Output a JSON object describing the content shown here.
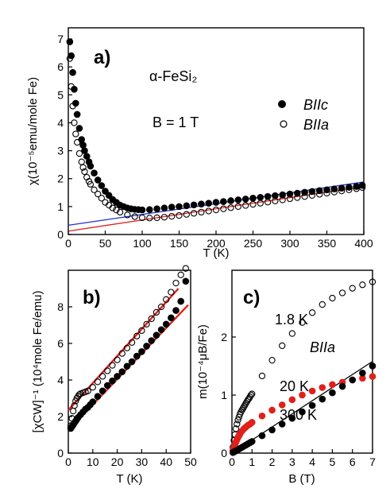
{
  "chart_data": [
    {
      "panel": "a)",
      "type": "scatter",
      "xlabel": "T (K)",
      "ylabel": "χ(10⁻⁵emu/mole Fe)",
      "xlim": [
        0,
        400
      ],
      "ylim": [
        0,
        7.4
      ],
      "xticks": [
        0,
        50,
        100,
        150,
        200,
        250,
        300,
        350,
        400
      ],
      "yticks": [
        0,
        1,
        2,
        3,
        4,
        5,
        6,
        7
      ],
      "annotations": {
        "compound": "α-FeSi₂",
        "field": "B = 1 T"
      },
      "series": [
        {
          "name": "BIIc",
          "marker": "filled-circle",
          "color": "#000000",
          "x": [
            2,
            4,
            6,
            8,
            10,
            12,
            15,
            18,
            20,
            22,
            25,
            28,
            30,
            35,
            40,
            45,
            50,
            55,
            60,
            65,
            70,
            75,
            80,
            85,
            90,
            95,
            100,
            110,
            120,
            130,
            140,
            150,
            160,
            170,
            180,
            190,
            200,
            210,
            220,
            230,
            240,
            250,
            260,
            270,
            280,
            290,
            300,
            310,
            320,
            330,
            340,
            350,
            360,
            370,
            380,
            390,
            398
          ],
          "y": [
            6.9,
            6.4,
            5.8,
            5.2,
            4.7,
            4.3,
            3.8,
            3.4,
            3.2,
            3.0,
            2.8,
            2.6,
            2.45,
            2.2,
            1.95,
            1.75,
            1.55,
            1.4,
            1.25,
            1.15,
            1.05,
            1.0,
            0.95,
            0.92,
            0.9,
            0.89,
            0.88,
            0.89,
            0.92,
            0.95,
            0.98,
            1.0,
            1.03,
            1.06,
            1.09,
            1.12,
            1.15,
            1.18,
            1.21,
            1.24,
            1.27,
            1.3,
            1.33,
            1.36,
            1.39,
            1.42,
            1.45,
            1.48,
            1.51,
            1.54,
            1.57,
            1.6,
            1.63,
            1.66,
            1.69,
            1.72,
            1.76
          ]
        },
        {
          "name": "BIIa",
          "marker": "open-circle",
          "color": "#000000",
          "x": [
            2,
            4,
            6,
            8,
            10,
            12,
            15,
            18,
            20,
            22,
            25,
            28,
            30,
            35,
            40,
            45,
            50,
            55,
            60,
            65,
            70,
            80,
            90,
            100,
            110,
            120,
            130,
            140,
            150,
            160,
            170,
            180,
            190,
            200,
            210,
            220,
            230,
            240,
            250,
            260,
            270,
            280,
            290,
            300,
            310,
            320,
            330,
            340,
            350,
            360,
            370,
            380,
            390,
            398
          ],
          "y": [
            6.3,
            5.3,
            4.6,
            4.0,
            3.6,
            3.3,
            2.9,
            2.6,
            2.4,
            2.25,
            2.05,
            1.9,
            1.8,
            1.6,
            1.45,
            1.3,
            1.15,
            1.05,
            0.95,
            0.88,
            0.8,
            0.7,
            0.64,
            0.6,
            0.59,
            0.6,
            0.62,
            0.65,
            0.68,
            0.72,
            0.76,
            0.8,
            0.84,
            0.88,
            0.92,
            0.96,
            1.0,
            1.04,
            1.08,
            1.12,
            1.16,
            1.2,
            1.24,
            1.28,
            1.32,
            1.36,
            1.4,
            1.44,
            1.48,
            1.52,
            1.56,
            1.6,
            1.64,
            1.68
          ]
        }
      ],
      "fits": [
        {
          "color": "#1f2fd0",
          "x": [
            0,
            400
          ],
          "y": [
            0.33,
            1.88
          ]
        },
        {
          "color": "#e0201a",
          "x": [
            0,
            400
          ],
          "y": [
            0.12,
            1.72
          ]
        }
      ],
      "legend": [
        {
          "label": "BIIc",
          "marker": "filled-circle"
        },
        {
          "label": "BIIa",
          "marker": "open-circle"
        }
      ]
    },
    {
      "panel": "b)",
      "type": "scatter",
      "xlabel": "T (K)",
      "ylabel": "[χCW]⁻¹ (10⁴mole Fe/emu)",
      "xlim": [
        0,
        50
      ],
      "ylim": [
        0,
        10
      ],
      "xticks": [
        0,
        10,
        20,
        30,
        40,
        50
      ],
      "yticks": [
        0,
        2,
        4,
        6,
        8
      ],
      "series": [
        {
          "name": "filled",
          "marker": "filled-circle",
          "color": "#000000",
          "x": [
            1,
            1.5,
            2,
            2.5,
            3,
            3.5,
            4,
            5,
            6,
            7,
            8,
            9,
            10,
            12,
            14,
            16,
            18,
            20,
            22,
            24,
            26,
            28,
            30,
            32,
            34,
            36,
            38,
            40,
            42,
            44,
            46,
            48
          ],
          "y": [
            1.35,
            1.45,
            1.55,
            1.65,
            1.75,
            1.85,
            1.95,
            2.1,
            2.25,
            2.4,
            2.5,
            2.65,
            2.8,
            3.1,
            3.4,
            3.7,
            3.95,
            4.2,
            4.45,
            4.75,
            5.0,
            5.3,
            5.55,
            5.85,
            6.15,
            6.45,
            6.75,
            7.05,
            7.4,
            7.8,
            8.3,
            9.4
          ]
        },
        {
          "name": "open",
          "marker": "open-circle",
          "color": "#000000",
          "x": [
            1,
            1.5,
            2,
            2.5,
            3,
            3.5,
            4,
            4.5,
            5,
            6,
            7,
            8,
            10,
            12,
            14,
            16,
            18,
            20,
            22,
            24,
            26,
            28,
            30,
            32,
            34,
            36,
            38,
            40,
            42,
            44,
            46,
            48
          ],
          "y": [
            1.5,
            1.9,
            2.3,
            2.6,
            2.85,
            3.0,
            3.1,
            3.2,
            3.25,
            3.3,
            3.35,
            3.4,
            3.6,
            3.9,
            4.2,
            4.5,
            4.8,
            5.1,
            5.45,
            5.75,
            6.05,
            6.4,
            6.7,
            7.05,
            7.35,
            7.7,
            8.0,
            8.4,
            8.8,
            9.3,
            9.75,
            10.1
          ]
        }
      ],
      "fits": [
        {
          "color": "#e0201a",
          "x": [
            0,
            49
          ],
          "y": [
            1.25,
            8.1
          ]
        },
        {
          "color": "#e0201a",
          "x": [
            0,
            45
          ],
          "y": [
            2.35,
            9.0
          ]
        }
      ]
    },
    {
      "panel": "c)",
      "type": "scatter",
      "xlabel": "B (T)",
      "ylabel": "m(10⁻⁴μB/Fe)",
      "xlim": [
        0,
        7
      ],
      "ylim": [
        0,
        3.15
      ],
      "xticks": [
        0,
        1,
        2,
        3,
        4,
        5,
        6,
        7
      ],
      "yticks": [
        0,
        1,
        2
      ],
      "annotations": {
        "t1": "1.8 K",
        "orientation": "BIIa",
        "t2": "20 K",
        "t3": "300 K"
      },
      "series": [
        {
          "name": "1.8 K",
          "marker": "open-circle",
          "color": "#000000",
          "x": [
            0.05,
            0.1,
            0.15,
            0.2,
            0.25,
            0.3,
            0.35,
            0.4,
            0.45,
            0.5,
            0.55,
            0.6,
            0.65,
            0.7,
            0.75,
            0.8,
            0.85,
            0.9,
            0.95,
            1.0,
            1.5,
            2.0,
            2.5,
            3.0,
            3.5,
            4.0,
            4.5,
            5.0,
            5.5,
            6.0,
            6.5,
            7.0
          ],
          "y": [
            0.1,
            0.22,
            0.32,
            0.42,
            0.5,
            0.57,
            0.62,
            0.67,
            0.71,
            0.74,
            0.77,
            0.8,
            0.83,
            0.86,
            0.89,
            0.92,
            0.94,
            0.97,
            1.0,
            1.02,
            1.33,
            1.6,
            1.85,
            2.06,
            2.25,
            2.42,
            2.56,
            2.67,
            2.76,
            2.84,
            2.9,
            2.95
          ]
        },
        {
          "name": "20 K",
          "marker": "filled-circle",
          "color": "#e0201a",
          "x": [
            0.05,
            0.1,
            0.15,
            0.2,
            0.25,
            0.3,
            0.35,
            0.4,
            0.5,
            0.6,
            0.7,
            0.8,
            0.9,
            1.0,
            1.5,
            2.0,
            2.5,
            3.0,
            3.5,
            4.0,
            4.5,
            5.0,
            5.5,
            6.0,
            6.5,
            7.0
          ],
          "y": [
            0.05,
            0.1,
            0.15,
            0.19,
            0.23,
            0.27,
            0.3,
            0.33,
            0.38,
            0.42,
            0.45,
            0.48,
            0.5,
            0.53,
            0.64,
            0.74,
            0.83,
            0.92,
            1.0,
            1.07,
            1.13,
            1.18,
            1.22,
            1.26,
            1.29,
            1.32
          ]
        },
        {
          "name": "300 K",
          "marker": "filled-circle",
          "color": "#000000",
          "x": [
            0.05,
            0.1,
            0.15,
            0.2,
            0.3,
            0.4,
            0.5,
            0.6,
            0.7,
            0.8,
            0.9,
            1.0,
            1.5,
            2.0,
            2.5,
            3.0,
            3.5,
            4.0,
            4.5,
            5.0,
            5.5,
            6.0,
            6.5,
            7.0
          ],
          "y": [
            0.01,
            0.02,
            0.03,
            0.04,
            0.06,
            0.08,
            0.1,
            0.12,
            0.14,
            0.16,
            0.18,
            0.2,
            0.3,
            0.4,
            0.5,
            0.6,
            0.71,
            0.82,
            0.93,
            1.04,
            1.15,
            1.26,
            1.38,
            1.5
          ]
        }
      ],
      "fits": [
        {
          "color": "#000000",
          "x": [
            0,
            7
          ],
          "y": [
            0.0,
            1.58
          ]
        }
      ]
    }
  ]
}
